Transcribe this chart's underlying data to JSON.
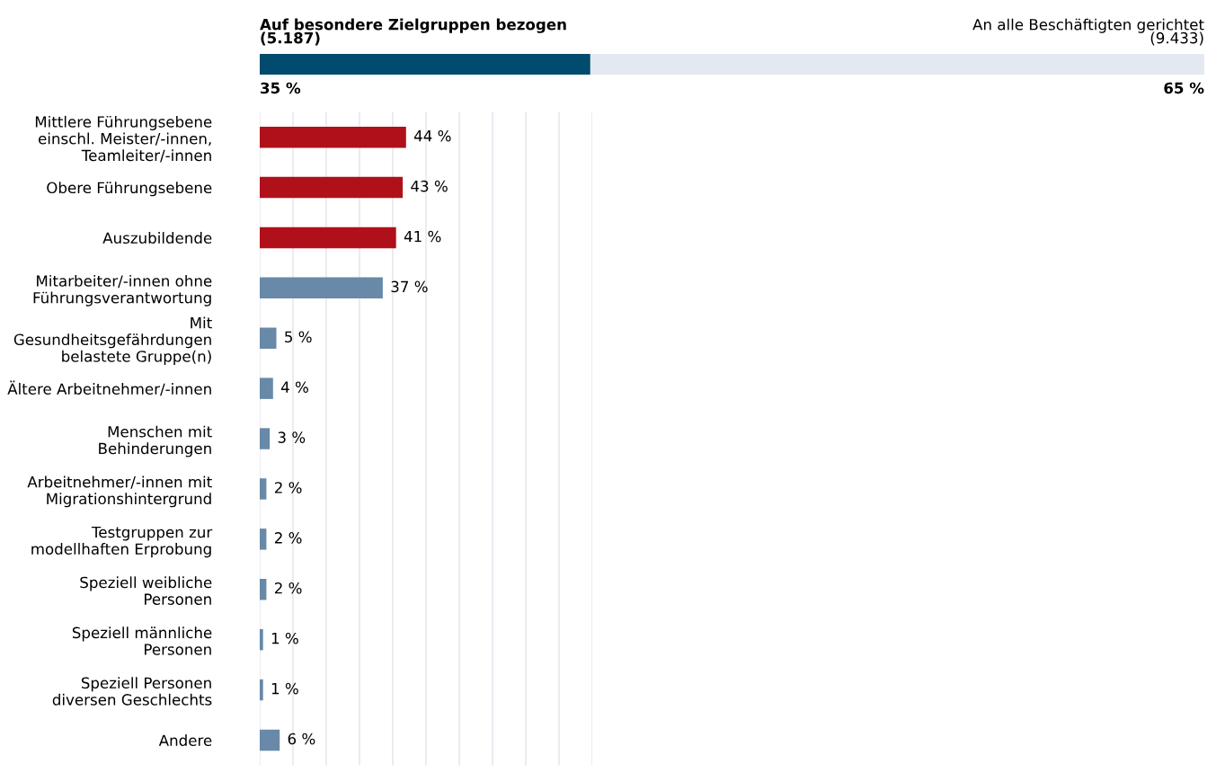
{
  "chart_data": [
    {
      "type": "bar",
      "orientation": "horizontal",
      "stacked": true,
      "categories": [
        null
      ],
      "xlim": [
        0,
        100
      ],
      "tick_labels": false,
      "grid": false,
      "legend": "top",
      "series": [
        {
          "name": "Auf besondere Zielgruppen bezogen\n(5.187)",
          "color": "#004b6e",
          "values": [
            35
          ],
          "value_labels": [
            "35 %"
          ]
        },
        {
          "name": "An alle Beschäftigten gerichtet\n(9.433)",
          "color": "#e4e8f1",
          "values": [
            65
          ],
          "value_labels": [
            "65 %"
          ]
        }
      ]
    },
    {
      "type": "bar",
      "orientation": "horizontal",
      "xlim": [
        0,
        100
      ],
      "tick_labels": "y",
      "grid": "x",
      "xticks": [
        {
          "value": 0,
          "label": null
        },
        {
          "value": 10,
          "label": null
        },
        {
          "value": 20,
          "label": null
        },
        {
          "value": 30,
          "label": null
        },
        {
          "value": 40,
          "label": null
        },
        {
          "value": 50,
          "label": null
        },
        {
          "value": 60,
          "label": null
        },
        {
          "value": 70,
          "label": null
        },
        {
          "value": 80,
          "label": null
        },
        {
          "value": 90,
          "label": null
        },
        {
          "value": 100,
          "label": null
        }
      ],
      "categories": [
        "Mittlere Führungsebene\neinschl. Meister/-innen,\nTeamleiter/-innen",
        "Obere Führungsebene",
        "Auszubildende",
        "Mitarbeiter/-innen ohne\nFührungsverantwortung",
        "Mit\nGesundheitsgefährdungen\nbelastete Gruppe(n)",
        "Ältere Arbeitnehmer/-innen",
        "Menschen mit\nBehinderungen",
        "Arbeitnehmer/-innen mit\nMigrationshintergrund",
        "Testgruppen zur\nmodellhaften Erprobung",
        "Speziell weibliche\nPersonen",
        "Speziell männliche\nPersonen",
        "Speziell Personen\ndiversen Geschlechts",
        "Andere"
      ],
      "values": [
        44,
        43,
        41,
        37,
        5,
        4,
        3,
        2,
        2,
        2,
        1,
        1,
        6
      ],
      "colors": [
        "#b0101a",
        "#b0101a",
        "#b0101a",
        "#6889a8",
        "#6889a8",
        "#6889a8",
        "#6889a8",
        "#6889a8",
        "#6889a8",
        "#6889a8",
        "#6889a8",
        "#6889a8",
        "#6889a8"
      ],
      "value_labels": [
        "44 %",
        "43 %",
        "41 %",
        "37 %",
        "5 %",
        "4 %",
        "3 %",
        "2 %",
        "2 %",
        "2 %",
        "1 %",
        "1 %",
        "6 %"
      ]
    }
  ]
}
